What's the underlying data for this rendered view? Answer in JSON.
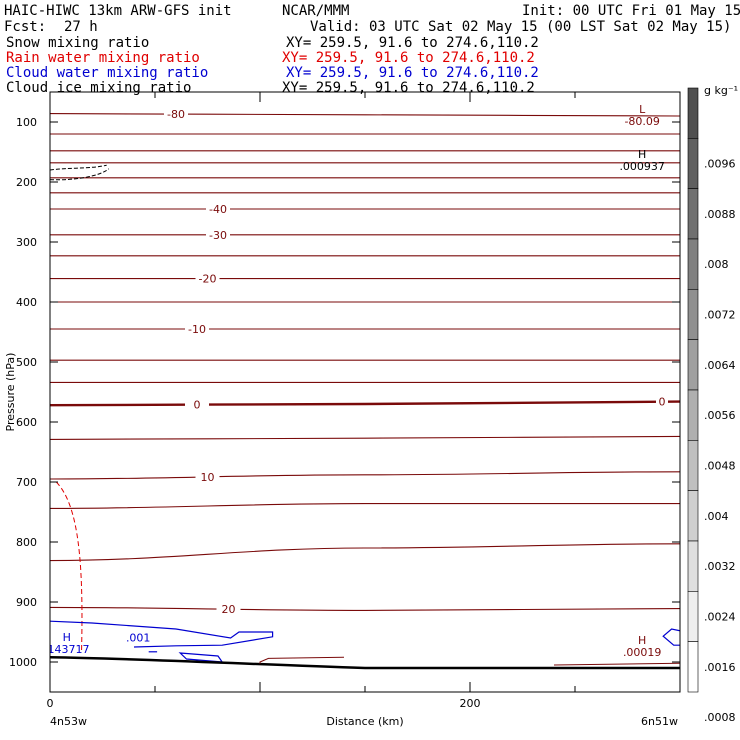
{
  "header": {
    "model": "HAIC-HIWC 13km ARW-GFS init",
    "org": "NCAR/MMM",
    "init": "Init: 00 UTC Fri 01 May 15",
    "fcst_label": "Fcst:",
    "fcst_value": "27 h",
    "valid": "Valid: 03 UTC Sat 02 May 15 (00 LST Sat 02 May 15)"
  },
  "fields": [
    {
      "name": "Snow mixing ratio",
      "xy": "XY= 259.5, 91.6 to 274.6,110.2",
      "color": "#000000"
    },
    {
      "name": "Rain water mixing ratio",
      "xy": "XY= 259.5, 91.6 to 274.6,110.2",
      "color": "#e00000"
    },
    {
      "name": "Cloud water mixing ratio",
      "xy": "XY= 259.5, 91.6 to 274.6,110.2",
      "color": "#0000d0"
    },
    {
      "name": "Cloud ice mixing ratio",
      "xy": "XY= 259.5, 91.6 to 274.6,110.2",
      "color": "#000000"
    }
  ],
  "colors": {
    "temperature": "#7a0a0a",
    "rain": "#e00000",
    "cloud_water": "#0000d0",
    "ground": "#000000"
  },
  "chart_data": {
    "type": "line",
    "xlabel": "Distance (km)",
    "ylabel": "Pressure (hPa)",
    "xlim": [
      0,
      300
    ],
    "ylim": [
      1050,
      50
    ],
    "x_ticks": [
      0,
      200
    ],
    "y_ticks": [
      100,
      200,
      300,
      400,
      500,
      600,
      700,
      800,
      900,
      1000
    ],
    "x_endpoints": {
      "left": "4n53w",
      "right": "6n51w"
    },
    "isotherms": [
      {
        "label": "-80",
        "p": [
          86,
          88,
          90
        ]
      },
      {
        "label": "",
        "p": [
          120,
          120,
          120
        ]
      },
      {
        "label": "",
        "p": [
          148,
          148,
          148
        ]
      },
      {
        "label": "",
        "p": [
          168,
          168,
          168
        ]
      },
      {
        "label": "",
        "p": [
          193,
          193,
          193
        ]
      },
      {
        "label": "",
        "p": [
          218,
          218,
          218
        ]
      },
      {
        "label": "-40",
        "p": [
          245,
          245,
          245
        ]
      },
      {
        "label": "-30",
        "p": [
          288,
          288,
          288
        ]
      },
      {
        "label": "",
        "p": [
          323,
          323,
          323
        ]
      },
      {
        "label": "-20",
        "p": [
          361,
          361,
          361
        ]
      },
      {
        "label": "",
        "p": [
          400,
          400,
          400
        ]
      },
      {
        "label": "-10",
        "p": [
          445,
          445,
          445
        ]
      },
      {
        "label": "",
        "p": [
          497,
          497,
          497
        ]
      },
      {
        "label": "",
        "p": [
          534,
          534,
          534
        ]
      },
      {
        "label": "0",
        "p": [
          572,
          570,
          566
        ]
      },
      {
        "label": "",
        "p": [
          629,
          627,
          624
        ]
      },
      {
        "label": "10",
        "p": [
          695,
          688,
          683
        ]
      },
      {
        "label": "",
        "p": [
          744,
          736,
          736
        ]
      },
      {
        "label": "",
        "p": [
          831,
          810,
          803
        ]
      },
      {
        "label": "20",
        "p": [
          909,
          914,
          911
        ]
      }
    ],
    "highs_lows": [
      {
        "kind": "L",
        "value": "-80.09",
        "x": 282,
        "p": 95,
        "color": "#7a0a0a"
      },
      {
        "kind": "H",
        "value": ".000937",
        "x": 282,
        "p": 170,
        "color": "#000000"
      },
      {
        "kind": "H",
        "value": ".143717",
        "x": 8,
        "p": 975,
        "color": "#0000d0"
      },
      {
        "kind": "H",
        "value": ".00019",
        "x": 282,
        "p": 980,
        "color": "#7a0a0a"
      }
    ],
    "cloud_water_label": ".001",
    "colorbar": {
      "units": "g kg⁻¹",
      "ticks": [
        ".0096",
        ".0088",
        ".008",
        ".0072",
        ".0064",
        ".0056",
        ".0048",
        ".004",
        ".0032",
        ".0024",
        ".0016",
        ".0008"
      ]
    }
  }
}
